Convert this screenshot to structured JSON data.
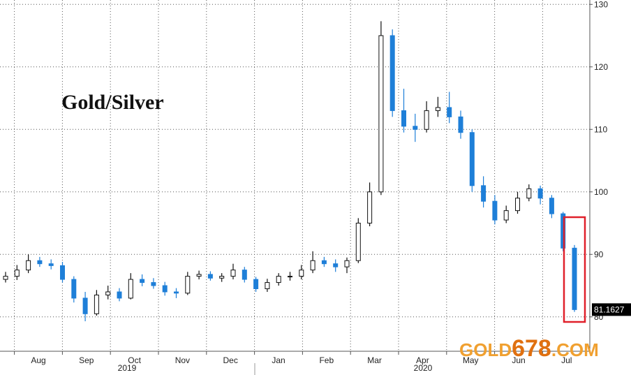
{
  "chart_data": {
    "type": "candlestick",
    "annotation": "Gold/Silver",
    "categories": [
      "Aug",
      "Sep",
      "Oct",
      "Nov",
      "Dec",
      "Jan",
      "Feb",
      "Mar",
      "Apr",
      "May",
      "Jun",
      "Jul"
    ],
    "years": [
      "2019",
      "2020"
    ],
    "open": [
      86.0,
      86.5,
      87.5,
      89.0,
      88.5,
      88.2,
      86.0,
      83.0,
      80.5,
      83.5,
      84.0,
      83.0,
      86.0,
      85.5,
      85.0,
      84.0,
      83.8,
      86.5,
      86.8,
      86.2,
      86.5,
      87.5,
      86.0,
      84.5,
      85.5,
      86.5,
      86.5,
      87.5,
      89.0,
      88.5,
      88.0,
      89.0,
      95.0,
      100.0,
      125.0,
      113.0,
      110.5,
      110.0,
      113.0,
      113.5,
      112.0,
      109.5,
      101.0,
      98.5,
      95.5,
      97.0,
      99.0,
      100.5,
      99.0,
      96.5,
      91.0
    ],
    "high": [
      87.2,
      88.3,
      90.0,
      89.6,
      89.2,
      88.8,
      86.5,
      84.0,
      84.3,
      85.0,
      84.6,
      87.0,
      86.8,
      86.2,
      85.6,
      84.6,
      87.2,
      87.4,
      87.3,
      87.0,
      88.5,
      88.0,
      86.4,
      86.1,
      87.0,
      87.2,
      88.3,
      90.5,
      89.6,
      89.2,
      89.5,
      95.8,
      101.5,
      127.3,
      126.0,
      116.5,
      112.5,
      114.5,
      115.2,
      116.0,
      113.0,
      110.0,
      102.5,
      99.5,
      97.8,
      100.0,
      101.2,
      101.0,
      99.5,
      96.8,
      91.5
    ],
    "low": [
      85.5,
      85.9,
      87.0,
      88.0,
      87.6,
      85.5,
      82.3,
      79.3,
      80.2,
      82.8,
      82.5,
      82.8,
      84.9,
      84.5,
      83.4,
      83.0,
      83.5,
      86.0,
      85.8,
      85.6,
      86.0,
      85.5,
      84.0,
      84.0,
      85.0,
      85.8,
      86.0,
      87.0,
      88.0,
      87.2,
      87.0,
      88.6,
      94.5,
      99.5,
      112.0,
      109.5,
      108.0,
      109.5,
      112.0,
      111.0,
      108.5,
      100.0,
      97.5,
      94.8,
      95.0,
      96.5,
      98.5,
      98.0,
      95.8,
      90.5,
      80.8
    ],
    "close": [
      86.5,
      87.5,
      89.0,
      88.5,
      88.2,
      86.0,
      83.0,
      80.5,
      83.5,
      84.0,
      83.0,
      86.0,
      85.5,
      85.0,
      84.0,
      83.8,
      86.5,
      86.8,
      86.2,
      86.5,
      87.5,
      86.0,
      84.5,
      85.5,
      86.5,
      86.5,
      87.5,
      89.0,
      88.5,
      88.0,
      89.0,
      95.0,
      100.0,
      125.0,
      113.0,
      110.5,
      110.0,
      113.0,
      113.5,
      112.0,
      109.5,
      101.0,
      98.5,
      95.5,
      97.0,
      99.0,
      100.5,
      99.0,
      96.5,
      91.0,
      81.1627
    ],
    "up_color": "#111111",
    "down_color": "#1e7fd8",
    "ylim": [
      74.5,
      130.7
    ],
    "yticks": [
      80,
      90,
      100,
      110,
      120,
      130
    ],
    "grid": true,
    "watermark": [
      "GOLD",
      "678",
      ".COM"
    ],
    "watermark_colors": [
      "#f0a030",
      "#e07010",
      "#f0a030"
    ]
  }
}
